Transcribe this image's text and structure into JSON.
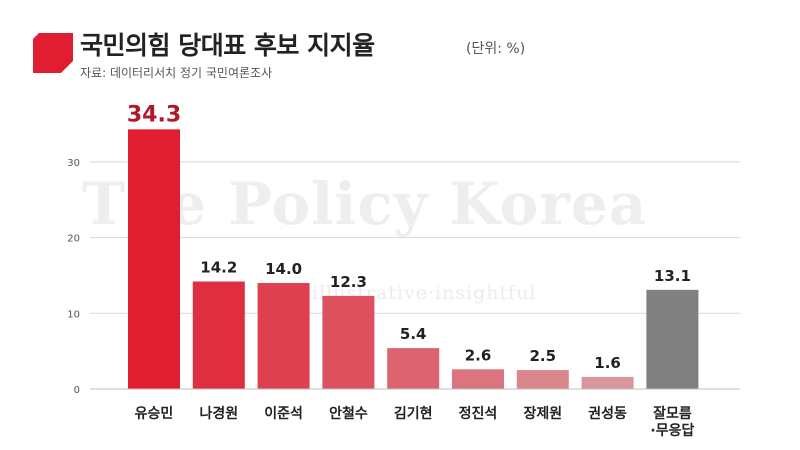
{
  "title": "국민의힘 당대표 후보 지지율",
  "unit": "(단위: %)",
  "source": "자료: 데이터리서치 정기 국민여론조사",
  "watermark": "The Policy Korea",
  "watermark_sub": "illustrative·insightful",
  "colors": {
    "accent": "#e11d32",
    "gradient_start": "#e11d32",
    "gradient_end": "#d8979c",
    "other": "#808080",
    "highlight_label": "#b0182b"
  },
  "chart_data": {
    "type": "bar",
    "title": "국민의힘 당대표 후보 지지율",
    "xlabel": "",
    "ylabel": "",
    "ylim": [
      0,
      36
    ],
    "yticks": [
      0,
      10,
      20,
      30
    ],
    "grid": true,
    "legend": "none",
    "categories": [
      "유승민",
      "나경원",
      "이준석",
      "안철수",
      "김기현",
      "정진석",
      "장제원",
      "권성동",
      "잘모름\n·무응답"
    ],
    "values": [
      34.3,
      14.2,
      14.0,
      12.3,
      5.4,
      2.6,
      2.5,
      1.6,
      13.1
    ],
    "value_labels": [
      "34.3",
      "14.2",
      "14.0",
      "12.3",
      "5.4",
      "2.6",
      "2.5",
      "1.6",
      "13.1"
    ]
  }
}
